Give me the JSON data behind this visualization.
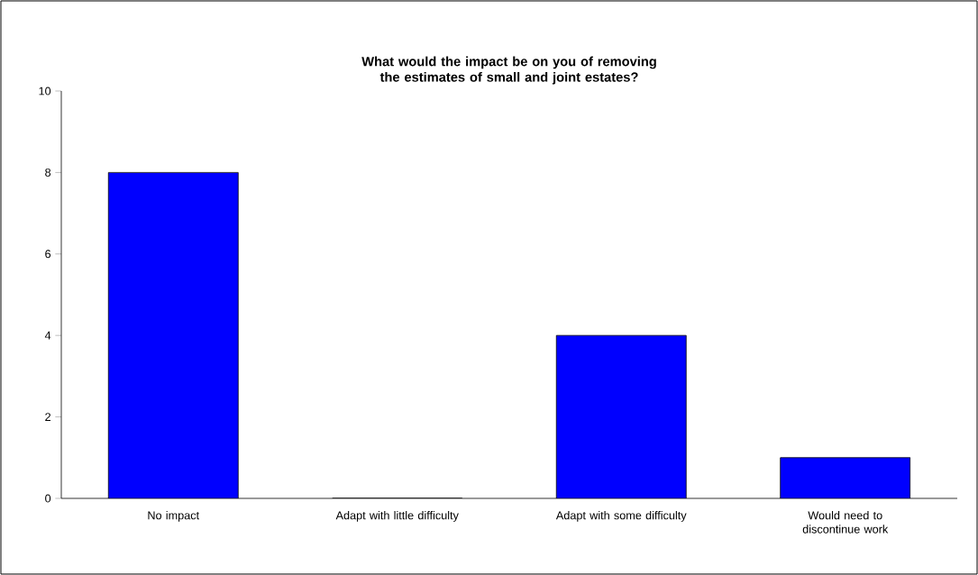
{
  "chart_data": {
    "type": "bar",
    "title": "What would the impact be on you of removing the estimates of small and joint estates?",
    "categories": [
      "No impact",
      "Adapt with little difficulty",
      "Adapt with some difficulty",
      "Would need to discontinue work"
    ],
    "values": [
      8,
      0,
      4,
      1
    ],
    "color": "#0000ff",
    "ylim": [
      0,
      10
    ],
    "yticks": [
      0,
      2,
      4,
      6,
      8,
      10
    ]
  }
}
